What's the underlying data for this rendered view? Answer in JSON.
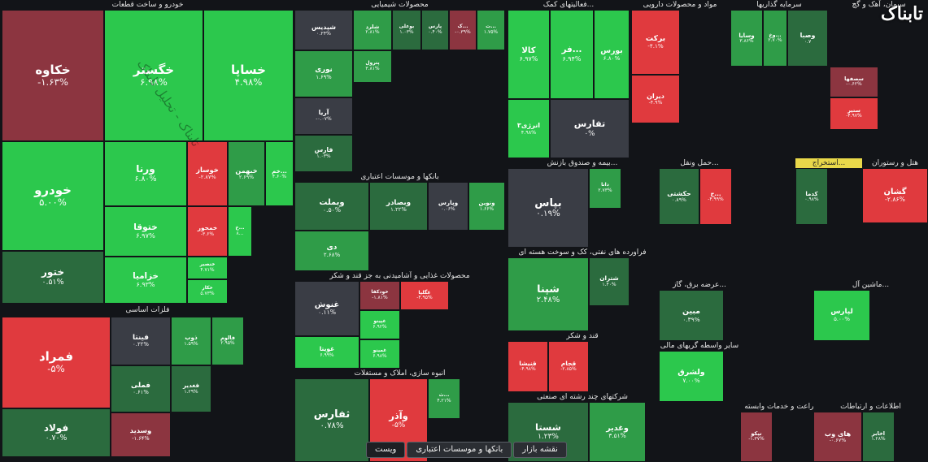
{
  "colors": {
    "strong_green": "#2cc84d",
    "green": "#2f9c48",
    "dark_green": "#2b6b3e",
    "neutral": "#3a3d45",
    "dark_red": "#8c3540",
    "red": "#e03a3e"
  },
  "breadcrumb": {
    "items": [
      "نقشه بازار",
      "بانکها و موسسات اعتباری",
      "ویست"
    ]
  },
  "logo": "تابناک",
  "watermark": "تابناک - تحلیل تابناک",
  "chart_data": {
    "type": "treemap",
    "sectors": [
      {
        "name": "خودرو و ساخت قطعات",
        "stocks": [
          {
            "name": "خکاوه",
            "change": "-۱.۶۳%",
            "value": -1.63
          },
          {
            "name": "خگستر",
            "change": "۶.۹۸%",
            "value": 6.98
          },
          {
            "name": "خساپا",
            "change": "۴.۹۸%",
            "value": 4.98
          },
          {
            "name": "خودرو",
            "change": "۵.۰۰%",
            "value": 5.0
          },
          {
            "name": "ورنا",
            "change": "۶.۸۰%",
            "value": 6.8
          },
          {
            "name": "خوساز",
            "change": "-۲.۸۷%",
            "value": -2.87
          },
          {
            "name": "خبهمن",
            "change": "۲.۶۹%",
            "value": 2.69
          },
          {
            "name": "خم...",
            "change": "۴.۶۰%",
            "value": 4.6
          },
          {
            "name": "ختوقا",
            "change": "۶.۹۷%",
            "value": 6.97
          },
          {
            "name": "خمحور",
            "change": "-۳.۶%",
            "value": -3.6
          },
          {
            "name": "خ...",
            "change": "۸...",
            "value": 8
          },
          {
            "name": "ختور",
            "change": "۰.۵۱%",
            "value": 0.51
          },
          {
            "name": "خزامیا",
            "change": "۶.۹۳%",
            "value": 6.93
          },
          {
            "name": "خنصير",
            "change": "۴.۷۱%",
            "value": 4.71
          },
          {
            "name": "خکار",
            "change": "۵.۷۳%",
            "value": 5.73
          }
        ]
      },
      {
        "name": "فلزات اساسی",
        "stocks": [
          {
            "name": "فمراد",
            "change": "-۵%",
            "value": -5
          },
          {
            "name": "فولاد",
            "change": "۰.۷۰%",
            "value": 0.7
          },
          {
            "name": "فینتا",
            "change": "۰.۲۲%",
            "value": 0.22
          },
          {
            "name": "فملی",
            "change": "۰.۶۱%",
            "value": 0.61
          },
          {
            "name": "وسدید",
            "change": "-۱.۶۴%",
            "value": -1.64
          },
          {
            "name": "ذوب",
            "change": "۱.۵۹%",
            "value": 1.59
          },
          {
            "name": "فالوم",
            "change": "۲.۹۵%",
            "value": 2.95
          },
          {
            "name": "فغدير",
            "change": "۱.۲۹%",
            "value": 1.29
          }
        ]
      },
      {
        "name": "محصولات شیمیایی",
        "stocks": [
          {
            "name": "شپدیس",
            "change": "۰.۲۴%",
            "value": 0.24
          },
          {
            "name": "شلرد",
            "change": "۲.۸۱%",
            "value": 2.81
          },
          {
            "name": "بوعلی",
            "change": "۱.۰۳%",
            "value": 1.03
          },
          {
            "name": "پارس",
            "change": "۰.۴۰%",
            "value": 0.4
          },
          {
            "name": "ک...",
            "change": "-۰.۳۹%",
            "value": -0.39
          },
          {
            "name": "ت...",
            "change": "۱.۷۵%",
            "value": 1.75
          },
          {
            "name": "نوری",
            "change": "۱.۶۹%",
            "value": 1.69
          },
          {
            "name": "پترول",
            "change": "۳.۸۱%",
            "value": 3.81
          },
          {
            "name": "آریا",
            "change": "-۰.۰۷%",
            "value": -0.07
          },
          {
            "name": "فارس",
            "change": "۱.۰۳%",
            "value": 1.03
          }
        ]
      },
      {
        "name": "بانکها و موسسات اعتباری",
        "stocks": [
          {
            "name": "وبملت",
            "change": "۰.۵۰%",
            "value": 0.5
          },
          {
            "name": "وبصادر",
            "change": "۱.۲۲%",
            "value": 1.22
          },
          {
            "name": "وپارس",
            "change": "۰.۰۶%",
            "value": 0.06
          },
          {
            "name": "ونوین",
            "change": "۱.۶۶%",
            "value": 1.66
          },
          {
            "name": "دی",
            "change": "۲.۶۸%",
            "value": 2.68
          }
        ]
      },
      {
        "name": "محصولات غذایی و آشامیدنی به جز قند و شکر",
        "stocks": [
          {
            "name": "غنوش",
            "change": "۰.۱۱%",
            "value": 0.11
          },
          {
            "name": "خودکفا",
            "change": "-۱.۸۱%",
            "value": -1.81
          },
          {
            "name": "غگلپا",
            "change": "-۴.۹۵%",
            "value": -4.95
          },
          {
            "name": "غپینو",
            "change": "۶.۹۲%",
            "value": 6.92
          },
          {
            "name": "غویتا",
            "change": "۶.۹۹%",
            "value": 6.99
          },
          {
            "name": "غمینو",
            "change": "۶.۹۸%",
            "value": 6.98
          }
        ]
      },
      {
        "name": "انبوه سازی، املاک و مستغلات",
        "stocks": [
          {
            "name": "ثفارس",
            "change": "۰.۷۸%",
            "value": 0.78
          },
          {
            "name": "وآذر",
            "change": "-۵%",
            "value": -5
          },
          {
            "name": "ث...",
            "change": "۴.۲۱%",
            "value": 4.21
          }
        ]
      },
      {
        "name": "فعالیتهای کمک...",
        "stocks": [
          {
            "name": "کالا",
            "change": "۶.۹۷%",
            "value": 6.97
          },
          {
            "name": "فر...",
            "change": "۶.۹۴%",
            "value": 6.94
          },
          {
            "name": "بورس",
            "change": "۶.۸۰%",
            "value": 6.8
          },
          {
            "name": "انرژی۳",
            "change": "۴.۹۸%",
            "value": 4.98
          },
          {
            "name": "تفارس",
            "change": "۰%",
            "value": 0
          }
        ]
      },
      {
        "name": "مواد و محصولات دارویی",
        "stocks": [
          {
            "name": "برکت",
            "change": "-۴.۱%",
            "value": -4.1
          },
          {
            "name": "دیران",
            "change": "-۴.۹%",
            "value": -4.9
          }
        ]
      },
      {
        "name": "سرمایه گذاریها",
        "stocks": [
          {
            "name": "وسایا",
            "change": "۳.۸۶%",
            "value": 3.86
          },
          {
            "name": "وخ...",
            "change": "۲.۷۰%",
            "value": 2.7
          },
          {
            "name": "وصبا",
            "change": "۰.۷",
            "value": 0.7
          }
        ]
      },
      {
        "name": "سیمان، آهک و گچ",
        "stocks": [
          {
            "name": "سصفها",
            "change": "-۰.۶۲%",
            "value": -0.62
          },
          {
            "name": "ستير",
            "change": "-۴.۹۷%",
            "value": -4.97
          }
        ]
      },
      {
        "name": "بیمه و صندوق بازنش...",
        "stocks": [
          {
            "name": "بپاس",
            "change": "۰.۱۹%",
            "value": 0.19
          },
          {
            "name": "دانا",
            "change": "۲.۷۳%",
            "value": 2.73
          }
        ]
      },
      {
        "name": "فراورده های نفتی، کک و سوخت هسته ای",
        "stocks": [
          {
            "name": "شپنا",
            "change": "۲.۴۸%",
            "value": 2.48
          },
          {
            "name": "شتران",
            "change": "۱.۴۰%",
            "value": 1.4
          }
        ]
      },
      {
        "name": "حمل ونقل...",
        "stocks": [
          {
            "name": "حکشتی",
            "change": "۰.۸۹%",
            "value": 0.89
          },
          {
            "name": "ح...",
            "change": "-۴.۹۹%",
            "value": -4.99
          }
        ]
      },
      {
        "name": "قند و شکر",
        "stocks": [
          {
            "name": "قنیشا",
            "change": "-۴.۹۸%",
            "value": -4.98
          },
          {
            "name": "قجام",
            "change": "-۲.۸۵%",
            "value": -2.85
          }
        ]
      },
      {
        "name": "شرکتهای چند رشته ای صنعتی",
        "stocks": [
          {
            "name": "شستا",
            "change": "۱.۲۳%",
            "value": 1.23
          },
          {
            "name": "وغدير",
            "change": "۳.۵۱%",
            "value": 3.51
          }
        ]
      },
      {
        "name": "عرضه برق، گاز...",
        "stocks": [
          {
            "name": "مبين",
            "change": "۰.۳۹%",
            "value": 0.39
          }
        ]
      },
      {
        "name": "سایر واسطه گریهای مالی",
        "stocks": [
          {
            "name": "ولشرق",
            "change": "۷.۰۰%",
            "value": 7.0
          }
        ]
      },
      {
        "name": "زراعت و خدمات وابسته",
        "stocks": [
          {
            "name": "تپکو",
            "change": "-۱.۳۷%",
            "value": -1.37
          }
        ]
      },
      {
        "name": "ماشین آل...",
        "stocks": [
          {
            "name": "لپارس",
            "change": "۵.۰۰%",
            "value": 5.0
          }
        ]
      },
      {
        "name": "هتل و رستوران",
        "stocks": [
          {
            "name": "گشان",
            "change": "-۲.۸۶%",
            "value": -2.86
          }
        ]
      },
      {
        "name": "استخراج...",
        "stocks": [
          {
            "name": "کدما",
            "change": "۰.۹۸%",
            "value": 0.98
          }
        ]
      },
      {
        "name": "اطلاعات و ارتباطات",
        "stocks": [
          {
            "name": "های وب",
            "change": "-۰.۶۷%",
            "value": -0.67
          },
          {
            "name": "اخابر",
            "change": "۱.۲۸%",
            "value": 1.28
          }
        ]
      }
    ]
  }
}
